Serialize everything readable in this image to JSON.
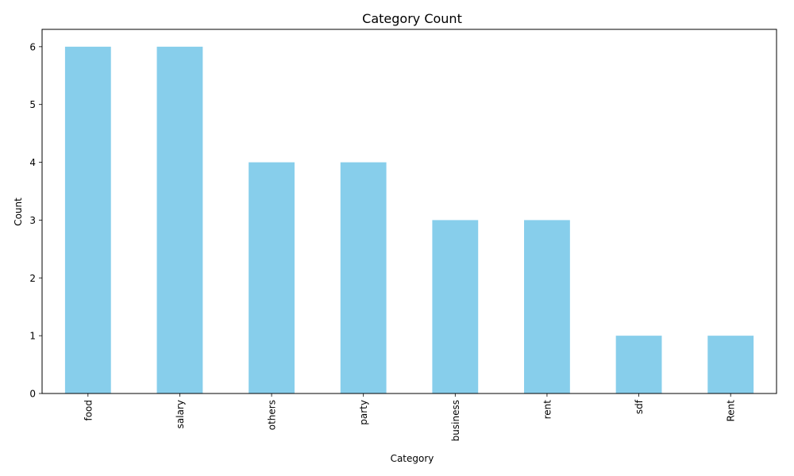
{
  "chart_data": {
    "type": "bar",
    "title": "Category Count",
    "xlabel": "Category",
    "ylabel": "Count",
    "categories": [
      "food",
      "salary",
      "others",
      "party",
      "business",
      "rent",
      "sdf",
      "Rent"
    ],
    "values": [
      6,
      6,
      4,
      4,
      3,
      3,
      1,
      1
    ],
    "ylim": [
      0,
      6.3
    ],
    "yticks": [
      0,
      1,
      2,
      3,
      4,
      5,
      6
    ],
    "xtick_rotation": "vertical",
    "grid": false,
    "legend": "none",
    "bar_color": "#87CEEB",
    "axis_color": "#000000"
  }
}
